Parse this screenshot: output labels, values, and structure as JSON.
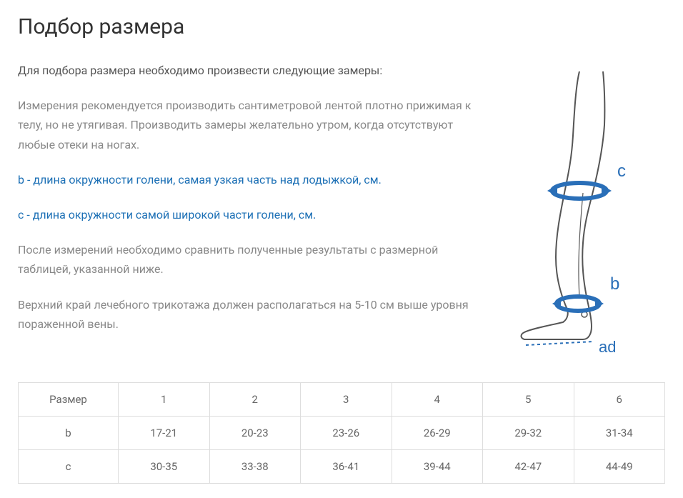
{
  "title": "Подбор размера",
  "text": {
    "lead": "Для подбора размера необходимо произвести следующие замеры:",
    "instr": "Измерения рекомендуется производить сантиметровой лентой плотно прижимая к телу, но не утягивая. Производить замеры желательно утром, когда отсутствуют любые отеки на ногах.",
    "b_letter": "b",
    "b_desc": " - длина окружности голени, самая узкая часть над лодыжкой, см.",
    "c_letter": "c",
    "c_desc": " - длина окружности самой широкой части голени, см.",
    "after": "После измерений необходимо сравнить полученные результаты с размерной таблицей, указанной ниже.",
    "top_edge": "Верхний край лечебного трикотажа должен располагаться на 5-10 см выше уровня пораженной вены."
  },
  "diagram": {
    "label_c": "c",
    "label_b": "b",
    "label_ad": "ad",
    "leg_stroke": "#555555",
    "ring_color": "#2a6fb8",
    "label_color": "#2a6fb8",
    "dash_color": "#2a6fb8"
  },
  "table": {
    "header_label": "Размер",
    "columns": [
      "1",
      "2",
      "3",
      "4",
      "5",
      "6"
    ],
    "rows": [
      {
        "label": "b",
        "cells": [
          "17-21",
          "20-23",
          "23-26",
          "26-29",
          "29-32",
          "31-34"
        ]
      },
      {
        "label": "c",
        "cells": [
          "30-35",
          "33-38",
          "36-41",
          "39-44",
          "42-47",
          "44-49"
        ]
      }
    ]
  }
}
